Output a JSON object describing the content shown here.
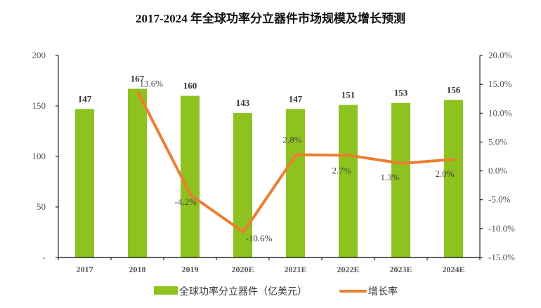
{
  "chart_data": {
    "type": "bar+line",
    "title": "2017-2024 年全球功率分立器件市场规模及增长预测",
    "categories": [
      "2017",
      "2018",
      "2019",
      "2020E",
      "2021E",
      "2022E",
      "2023E",
      "2024E"
    ],
    "series": [
      {
        "name": "全球功率分立器件（亿美元）",
        "type": "bar",
        "axis": "left",
        "color": "#8dc21f",
        "values": [
          147,
          167,
          160,
          143,
          147,
          151,
          153,
          156
        ],
        "labels": [
          "147",
          "167",
          "160",
          "143",
          "147",
          "151",
          "153",
          "156"
        ]
      },
      {
        "name": "增长率",
        "type": "line",
        "axis": "right",
        "color": "#ed7d31",
        "values": [
          null,
          13.6,
          -4.2,
          -10.6,
          2.8,
          2.7,
          1.3,
          2.0
        ],
        "labels": [
          "",
          "13.6%",
          "-4.2%",
          "-10.6%",
          "2.8%",
          "2.7%",
          "1.3%",
          "2.0%"
        ]
      }
    ],
    "left_axis": {
      "ylim": [
        0,
        200
      ],
      "ticks": [
        "-",
        "50",
        "100",
        "150",
        "200"
      ]
    },
    "right_axis": {
      "ylim": [
        -15,
        20
      ],
      "ticks": [
        "-15.0%",
        "-10.0%",
        "-5.0%",
        "0.0%",
        "5.0%",
        "10.0%",
        "15.0%",
        "20.0%"
      ]
    },
    "grid": false,
    "legend": "bottom"
  }
}
